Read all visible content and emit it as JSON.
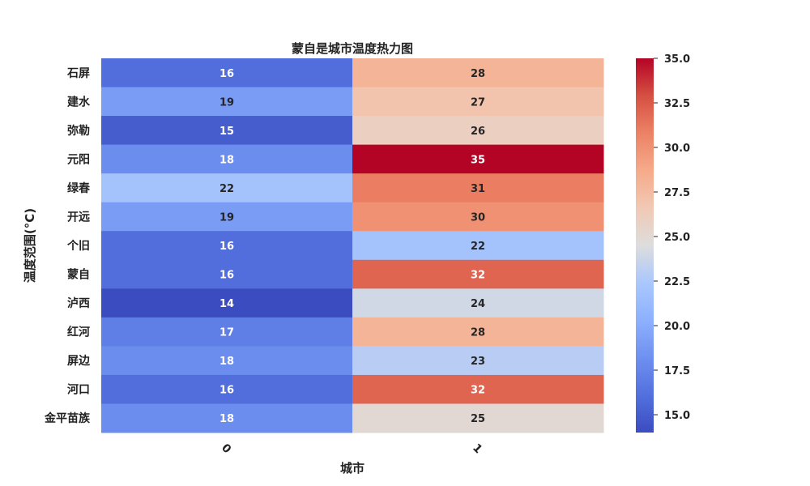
{
  "chart_data": {
    "type": "heatmap",
    "title": "蒙自是城市温度热力图",
    "xlabel": "城市",
    "ylabel": "温度范围(°C)",
    "columns": [
      "0",
      "1"
    ],
    "rows": [
      "石屏",
      "建水",
      "弥勒",
      "元阳",
      "绿春",
      "开远",
      "个旧",
      "蒙自",
      "泸西",
      "红河",
      "屏边",
      "河口",
      "金平苗族"
    ],
    "values": [
      [
        16,
        28
      ],
      [
        19,
        27
      ],
      [
        15,
        26
      ],
      [
        18,
        35
      ],
      [
        22,
        31
      ],
      [
        19,
        30
      ],
      [
        16,
        22
      ],
      [
        16,
        32
      ],
      [
        14,
        24
      ],
      [
        17,
        28
      ],
      [
        18,
        23
      ],
      [
        16,
        32
      ],
      [
        18,
        25
      ]
    ],
    "colormap": "coolwarm",
    "colorbar": {
      "vmin": 14,
      "vmax": 35,
      "ticks": [
        "15.0",
        "17.5",
        "20.0",
        "22.5",
        "25.0",
        "27.5",
        "30.0",
        "32.5",
        "35.0"
      ]
    },
    "annotations": true
  }
}
